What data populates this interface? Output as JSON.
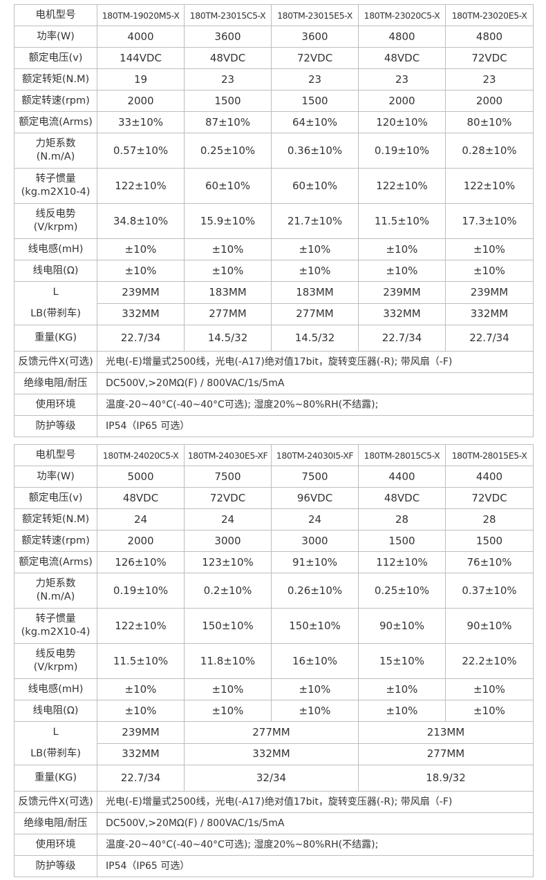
{
  "tables": [
    {
      "header": {
        "label": "电机型号",
        "models": [
          "180TM-19020M5-X",
          "180TM-23015C5-X",
          "180TM-23015E5-X",
          "180TM-23020C5-X",
          "180TM-23020E5-X"
        ]
      },
      "rows": [
        {
          "label": "功率(W)",
          "values": [
            "4000",
            "3600",
            "3600",
            "4800",
            "4800"
          ]
        },
        {
          "label": "额定电压(v)",
          "values": [
            "144VDC",
            "48VDC",
            "72VDC",
            "48VDC",
            "72VDC"
          ]
        },
        {
          "label": "额定转矩(N.M)",
          "values": [
            "19",
            "23",
            "23",
            "23",
            "23"
          ]
        },
        {
          "label": "额定转速(rpm)",
          "values": [
            "2000",
            "1500",
            "1500",
            "2000",
            "2000"
          ]
        },
        {
          "label": "额定电流(Arms)",
          "values": [
            "33±10%",
            "87±10%",
            "64±10%",
            "120±10%",
            "80±10%"
          ]
        },
        {
          "label": "力矩系数\n(N.m/A)",
          "values": [
            "0.57±10%",
            "0.25±10%",
            "0.36±10%",
            "0.19±10%",
            "0.28±10%"
          ]
        },
        {
          "label": "转子惯量\n(kg.m2X10-4)",
          "values": [
            "122±10%",
            "60±10%",
            "60±10%",
            "122±10%",
            "122±10%"
          ]
        },
        {
          "label": "线反电势\n(V/krpm)",
          "values": [
            "34.8±10%",
            "15.9±10%",
            "21.7±10%",
            "11.5±10%",
            "17.3±10%"
          ]
        },
        {
          "label": "线电感(mH)",
          "values": [
            "±10%",
            "±10%",
            "±10%",
            "±10%",
            "±10%"
          ]
        },
        {
          "label": "线电阻(Ω)",
          "values": [
            "±10%",
            "±10%",
            "±10%",
            "±10%",
            "±10%"
          ]
        }
      ],
      "dims": [
        {
          "label": "L",
          "values": [
            "239MM",
            "183MM",
            "183MM",
            "239MM",
            "239MM"
          ]
        },
        {
          "label": "LB(带刹车)",
          "values": [
            "332MM",
            "277MM",
            "277MM",
            "332MM",
            "332MM"
          ]
        }
      ],
      "weight": {
        "label": "重量(KG)",
        "values": [
          "22.7/34",
          "14.5/32",
          "14.5/32",
          "22.7/34",
          "22.7/34"
        ]
      },
      "notes": [
        {
          "label": "反馈元件X(可选)",
          "text": "光电(-E)增量式2500线，光电(-A17)绝对值17bit，旋转变压器(-R); 带风扇（-F)"
        },
        {
          "label": "绝缘电阻/耐压",
          "text": "DC500V,>20MΩ(F) / 800VAC/1s/5mA"
        },
        {
          "label": "使用环境",
          "text": "温度-20~40°C(-40~40°C可选); 湿度20%~80%RH(不结露);"
        },
        {
          "label": "防护等级",
          "text": "IP54（IP65 可选）"
        }
      ]
    },
    {
      "header": {
        "label": "电机型号",
        "models": [
          "180TM-24020C5-X",
          "180TM-24030E5-XF",
          "180TM-24030I5-XF",
          "180TM-28015C5-X",
          "180TM-28015E5-X"
        ]
      },
      "rows": [
        {
          "label": "功率(W)",
          "values": [
            "5000",
            "7500",
            "7500",
            "4400",
            "4400"
          ]
        },
        {
          "label": "额定电压(v)",
          "values": [
            "48VDC",
            "72VDC",
            "96VDC",
            "48VDC",
            "72VDC"
          ]
        },
        {
          "label": "额定转矩(N.M)",
          "values": [
            "24",
            "24",
            "24",
            "28",
            "28"
          ]
        },
        {
          "label": "额定转速(rpm)",
          "values": [
            "2000",
            "3000",
            "3000",
            "1500",
            "1500"
          ]
        },
        {
          "label": "额定电流(Arms)",
          "values": [
            "126±10%",
            "123±10%",
            "91±10%",
            "112±10%",
            "76±10%"
          ]
        },
        {
          "label": "力矩系数\n(N.m/A)",
          "values": [
            "0.19±10%",
            "0.2±10%",
            "0.26±10%",
            "0.25±10%",
            "0.37±10%"
          ]
        },
        {
          "label": "转子惯量\n(kg.m2X10-4)",
          "values": [
            "122±10%",
            "150±10%",
            "150±10%",
            "90±10%",
            "90±10%"
          ]
        },
        {
          "label": "线反电势\n(V/krpm)",
          "values": [
            "11.5±10%",
            "11.8±10%",
            "16±10%",
            "15±10%",
            "22.2±10%"
          ]
        },
        {
          "label": "线电感(mH)",
          "values": [
            "±10%",
            "±10%",
            "±10%",
            "±10%",
            "±10%"
          ]
        },
        {
          "label": "线电阻(Ω)",
          "values": [
            "±10%",
            "±10%",
            "±10%",
            "±10%",
            "±10%"
          ]
        }
      ],
      "dims": [
        {
          "label": "L",
          "values": [
            "239MM",
            "277MM",
            "213MM"
          ]
        },
        {
          "label": "LB(带刹车)",
          "values": [
            "332MM",
            "332MM",
            "277MM"
          ]
        }
      ],
      "weight": {
        "label": "重量(KG)",
        "values": [
          "22.7/34",
          "32/34",
          "18.9/32"
        ]
      },
      "notes": [
        {
          "label": "反馈元件X(可选)",
          "text": "光电(-E)增量式2500线，光电(-A17)绝对值17bit，旋转变压器(-R); 带风扇（-F)"
        },
        {
          "label": "绝缘电阻/耐压",
          "text": "DC500V,>20MΩ(F) / 800VAC/1s/5mA"
        },
        {
          "label": "使用环境",
          "text": "温度-20~40°C(-40~40°C可选); 湿度20%~80%RH(不结露);"
        },
        {
          "label": "防护等级",
          "text": "IP54（IP65 可选）"
        }
      ]
    }
  ]
}
